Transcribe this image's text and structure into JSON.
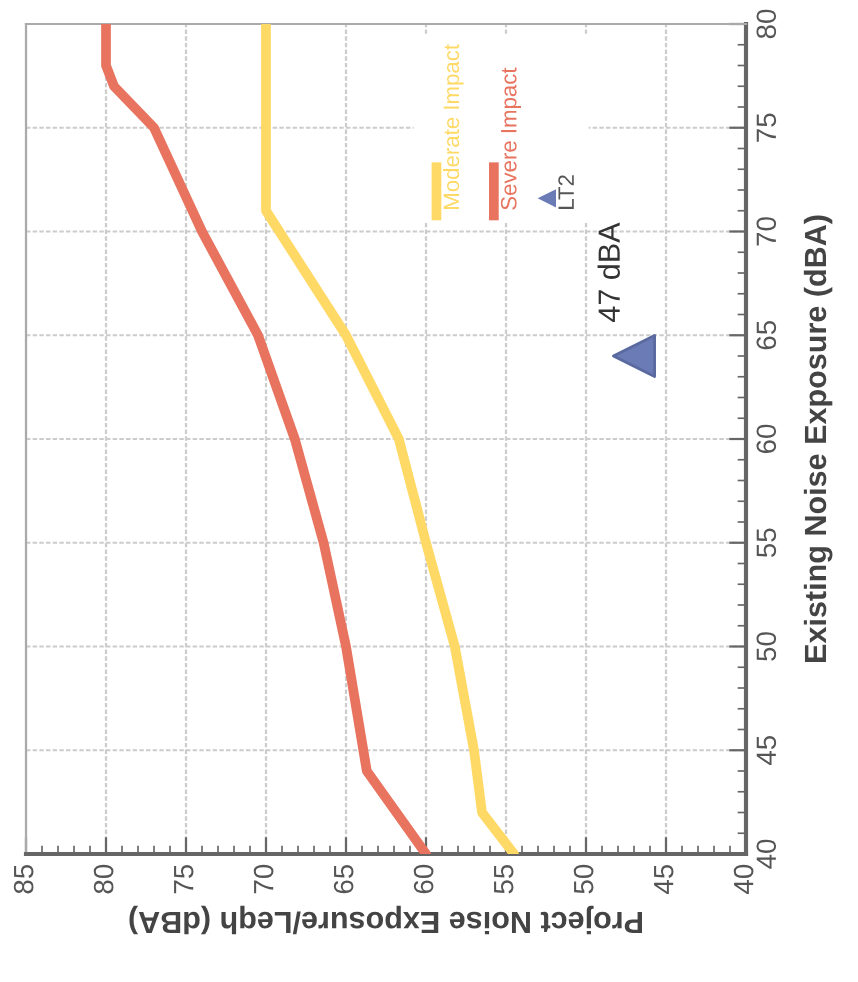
{
  "chart_data": {
    "type": "line",
    "xlabel": "Project Noise Exposure/Leqh (dBA)",
    "ylabel": "Existing Noise Exposure (dBA)",
    "xlim": [
      85,
      40
    ],
    "ylim": [
      40,
      80
    ],
    "xticks": [
      85,
      80,
      75,
      70,
      65,
      60,
      55,
      50,
      45,
      40
    ],
    "yticks": [
      40,
      45,
      50,
      55,
      60,
      65,
      70,
      75,
      80
    ],
    "grid": true,
    "legend": "top",
    "marker": "none",
    "line_style": "solid",
    "series": [
      {
        "name": "Moderate Impact",
        "color": "#ffd966",
        "x": [
          54.5,
          56.5,
          57,
          58.2,
          60,
          61.7,
          65,
          67.5,
          70,
          70
        ],
        "values": [
          40,
          42,
          45,
          50,
          55,
          60,
          65,
          68,
          71,
          80
        ]
      },
      {
        "name": "Severe Impact",
        "color": "#e8735f",
        "x": [
          60,
          63.7,
          65,
          66.4,
          68.2,
          70.5,
          74,
          77,
          79.5,
          80,
          80
        ],
        "values": [
          40,
          44,
          50,
          55,
          60,
          65,
          70,
          75,
          77,
          78,
          80
        ]
      },
      {
        "name": "LT2",
        "type": "scatter",
        "color": "#6b7bb5",
        "marker": "triangle",
        "x": [
          47
        ],
        "values": [
          64
        ]
      }
    ],
    "annotations": [
      {
        "text": "47 dBA",
        "x": 47,
        "y": 64
      }
    ]
  }
}
